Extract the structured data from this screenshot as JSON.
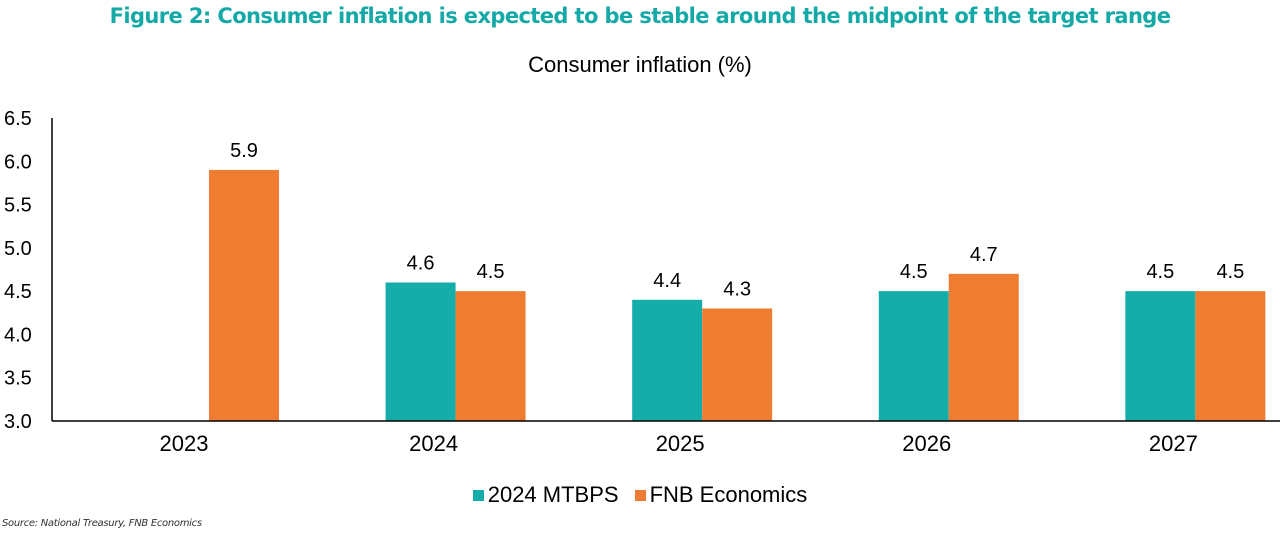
{
  "figure_title": "Figure 2: Consumer inflation is expected to be stable around the midpoint of the target range",
  "source": "Source: National Treasury, FNB Economics",
  "colors": {
    "title": "#14a9a6",
    "mtbps": "#14ada9",
    "fnb": "#ef7d31",
    "axis": "#000000"
  },
  "chart_data": {
    "type": "bar",
    "title": "Consumer inflation (%)",
    "xlabel": "",
    "ylabel": "",
    "categories": [
      "2023",
      "2024",
      "2025",
      "2026",
      "2027"
    ],
    "series": [
      {
        "name": "2024 MTBPS",
        "color": "#14ada9",
        "values": [
          null,
          4.6,
          4.4,
          4.5,
          4.5
        ]
      },
      {
        "name": "FNB Economics",
        "color": "#ef7d31",
        "values": [
          5.9,
          4.5,
          4.3,
          4.7,
          4.5
        ]
      }
    ],
    "ylim": [
      3.0,
      6.5
    ],
    "yticks": [
      "3.0",
      "3.5",
      "4.0",
      "4.5",
      "5.0",
      "5.5",
      "6.0",
      "6.5"
    ],
    "grid": false,
    "legend_position": "bottom",
    "data_labels": true
  }
}
